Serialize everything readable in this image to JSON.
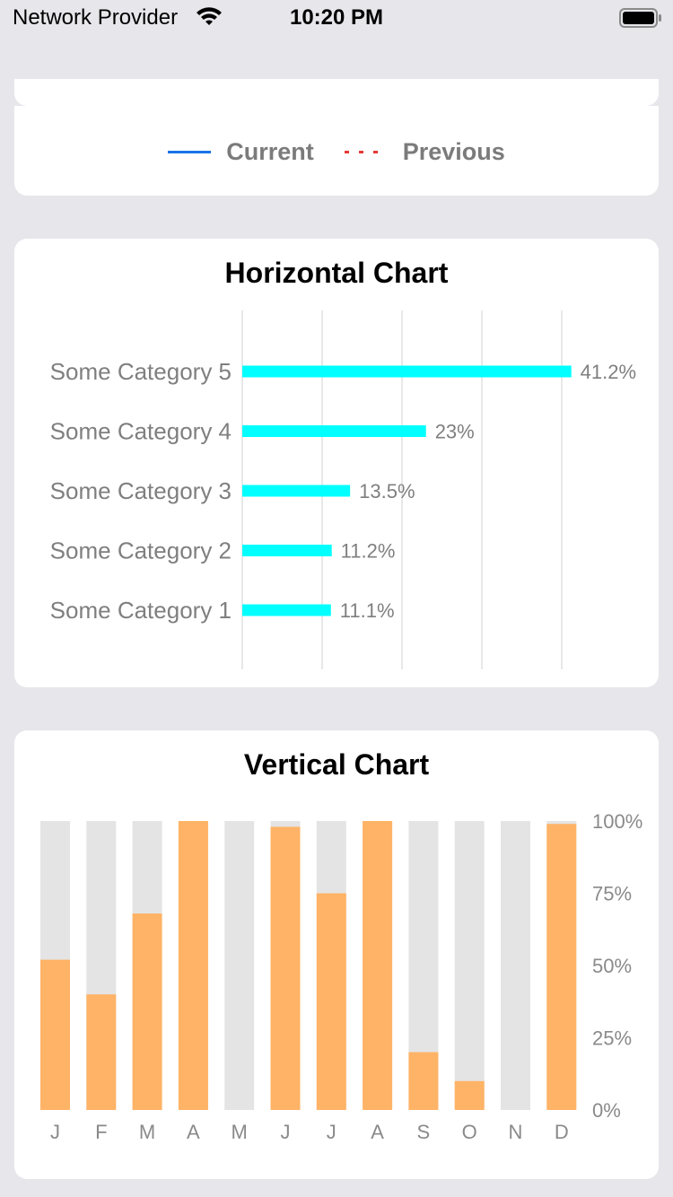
{
  "status_bar": {
    "carrier": "Network Provider",
    "time": "10:20 PM"
  },
  "legend": {
    "items": [
      {
        "label": "Current",
        "color": "#1a73e8",
        "style": "solid"
      },
      {
        "label": "Previous",
        "color": "#e53935",
        "style": "dotted"
      }
    ]
  },
  "chart_data": [
    {
      "type": "bar",
      "orientation": "horizontal",
      "title": "Horizontal Chart",
      "categories": [
        "Some Category 5",
        "Some Category 4",
        "Some Category 3",
        "Some Category 2",
        "Some Category 1"
      ],
      "values": [
        41.2,
        23,
        13.5,
        11.2,
        11.1
      ],
      "value_labels": [
        "41.2%",
        "23%",
        "13.5%",
        "11.2%",
        "11.1%"
      ],
      "xlim": [
        0,
        40
      ],
      "grid": true,
      "bar_color": "#00ffff"
    },
    {
      "type": "bar",
      "orientation": "vertical",
      "title": "Vertical Chart",
      "categories": [
        "J",
        "F",
        "M",
        "A",
        "M",
        "J",
        "J",
        "A",
        "S",
        "O",
        "N",
        "D"
      ],
      "values": [
        52,
        40,
        68,
        100,
        0,
        98,
        75,
        100,
        20,
        10,
        0,
        99
      ],
      "ylim": [
        0,
        100
      ],
      "yticks": [
        "0%",
        "25%",
        "50%",
        "75%",
        "100%"
      ],
      "y_axis_side": "right",
      "bar_color": "#ffb366",
      "track_color": "#e4e4e4"
    }
  ]
}
